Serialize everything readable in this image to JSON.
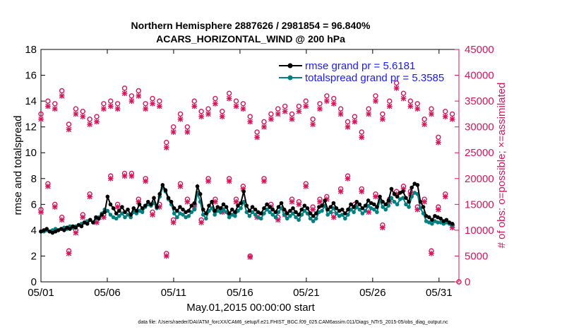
{
  "colors": {
    "rmse": "#000000",
    "spread": "#008080",
    "obs": "#d6145a",
    "legend_text": "#1a1aff",
    "axis": "#000000",
    "right_axis": "#d6145a"
  },
  "chart_data": {
    "type": "line",
    "title": [
      "Northern Hemisphere 2887626 / 2981854 = 96.840%",
      "ACARS_HORIZONTAL_WIND @ 200 hPa"
    ],
    "xlabel": "May.01,2015 00:00:00 start",
    "ylabel_left": "rmse and totalspread",
    "ylabel_right": "# of obs: o=possible; ×=assimilated",
    "xlim": [
      0,
      31.5
    ],
    "ylim_left": [
      0,
      18
    ],
    "ylim_right": [
      0,
      45000
    ],
    "x_ticks": [
      {
        "v": 0,
        "label": "05/01"
      },
      {
        "v": 5,
        "label": "05/06"
      },
      {
        "v": 10,
        "label": "05/11"
      },
      {
        "v": 15,
        "label": "05/16"
      },
      {
        "v": 20,
        "label": "05/21"
      },
      {
        "v": 25,
        "label": "05/26"
      },
      {
        "v": 30,
        "label": "05/31"
      }
    ],
    "y_ticks_left": [
      0,
      2,
      4,
      6,
      8,
      10,
      12,
      14,
      16,
      18
    ],
    "y_ticks_right": [
      0,
      5000,
      10000,
      15000,
      20000,
      25000,
      30000,
      35000,
      40000,
      45000
    ],
    "footnote": "data file: /Users/raeder/DAI/ATM_forcXX/CAM6_setup/f.e21.FHIST_BGC.f09_025.CAM6assim.011/Diags_NTrS_2015-05/obs_diag_output.nc",
    "legend_location": "top-right",
    "series": [
      {
        "name": "rmse grand pr = 5.6181",
        "values": [
          3.9,
          4.0,
          4.1,
          3.9,
          3.8,
          3.9,
          4.0,
          4.1,
          4.0,
          4.2,
          4.1,
          4.3,
          4.2,
          4.4,
          4.3,
          4.6,
          4.5,
          4.8,
          4.6,
          5.0,
          4.9,
          5.2,
          5.4,
          6.6,
          6.0,
          5.7,
          5.3,
          5.5,
          5.8,
          5.4,
          5.6,
          5.2,
          5.7,
          5.5,
          6.0,
          5.7,
          5.9,
          6.2,
          6.0,
          6.5,
          5.8,
          6.8,
          7.5,
          7.1,
          6.5,
          6.2,
          5.7,
          5.5,
          5.8,
          5.6,
          5.4,
          5.5,
          5.9,
          6.1,
          7.4,
          6.8,
          5.6,
          5.3,
          5.9,
          6.2,
          5.5,
          5.8,
          5.7,
          6.0,
          5.8,
          5.3,
          5.6,
          5.4,
          5.9,
          6.1,
          7.0,
          5.9,
          5.5,
          5.8,
          5.6,
          5.4,
          5.3,
          5.7,
          6.0,
          5.8,
          5.6,
          5.4,
          5.8,
          6.1,
          5.6,
          5.3,
          5.5,
          5.7,
          5.4,
          5.2,
          5.6,
          5.9,
          5.7,
          5.3,
          5.1,
          5.3,
          5.8,
          5.9,
          6.3,
          5.6,
          5.8,
          6.1,
          5.7,
          5.5,
          5.6,
          5.3,
          5.6,
          6.0,
          5.8,
          6.2,
          6.0,
          5.7,
          5.9,
          6.3,
          6.1,
          6.0,
          5.8,
          6.6,
          6.2,
          6.0,
          6.3,
          7.2,
          6.8,
          6.6,
          6.9,
          7.0,
          6.5,
          6.2,
          7.3,
          7.6,
          7.5,
          6.2,
          5.8,
          5.1,
          5.0,
          4.8,
          5.1,
          5.0,
          4.9,
          4.7,
          4.8,
          4.6,
          4.5
        ]
      },
      {
        "name": "totalspread grand pr = 5.3585",
        "values": [
          3.9,
          3.9,
          4.0,
          3.9,
          4.0,
          4.1,
          4.0,
          4.1,
          4.2,
          4.1,
          4.3,
          4.2,
          4.3,
          4.4,
          4.5,
          4.6,
          4.7,
          4.8,
          4.6,
          4.9,
          5.0,
          5.3,
          5.6,
          5.5,
          5.2,
          5.0,
          4.9,
          5.1,
          5.3,
          5.0,
          5.2,
          5.0,
          5.4,
          5.3,
          5.5,
          5.4,
          5.8,
          6.0,
          5.9,
          6.1,
          5.7,
          6.6,
          7.3,
          7.0,
          6.4,
          6.0,
          5.3,
          5.0,
          5.3,
          5.2,
          5.0,
          5.1,
          5.4,
          5.6,
          6.9,
          6.2,
          5.2,
          4.9,
          5.5,
          5.7,
          5.2,
          5.5,
          5.4,
          5.6,
          5.4,
          5.0,
          5.2,
          5.1,
          5.5,
          5.7,
          6.2,
          5.4,
          5.1,
          5.4,
          5.2,
          5.0,
          4.9,
          5.3,
          5.6,
          5.4,
          5.2,
          5.0,
          5.4,
          5.7,
          5.2,
          4.9,
          5.1,
          5.3,
          5.0,
          4.8,
          5.2,
          5.5,
          5.3,
          4.9,
          4.7,
          4.9,
          5.4,
          5.5,
          5.9,
          5.2,
          5.4,
          5.7,
          5.3,
          5.1,
          5.2,
          4.9,
          5.2,
          5.6,
          5.4,
          5.8,
          5.6,
          5.3,
          5.5,
          5.9,
          5.7,
          5.6,
          5.4,
          6.3,
          5.8,
          5.6,
          5.9,
          6.5,
          6.2,
          6.0,
          6.4,
          6.5,
          6.0,
          5.8,
          6.6,
          6.9,
          6.8,
          5.7,
          5.3,
          4.7,
          4.6,
          4.5,
          4.7,
          4.6,
          4.6,
          4.5,
          4.6,
          4.5,
          4.4
        ]
      },
      {
        "name": "possible",
        "values": [
          14000,
          19000,
          15000,
          12500,
          6000,
          10000,
          13000,
          17000,
          12000,
          13000,
          20500,
          15000,
          21000,
          21000,
          16000,
          20000,
          13500,
          15000,
          5500,
          12000,
          19000,
          16000,
          15000,
          12000,
          20000,
          16000,
          14000,
          20000,
          16000,
          18500,
          5000,
          13000,
          20000,
          15000,
          12500,
          13500,
          16000,
          15500,
          19000,
          14500,
          16000,
          16500,
          13000,
          18000,
          20500,
          15000,
          18000,
          14000,
          17000,
          11000,
          16000,
          17500,
          18500,
          17500,
          14500,
          16000,
          6000,
          14500,
          17000,
          11000
        ]
      },
      {
        "name": "assimilated",
        "values": [
          13500,
          18500,
          14500,
          12000,
          5500,
          9500,
          12500,
          16500,
          11500,
          12500,
          20000,
          14500,
          20500,
          20500,
          15500,
          19500,
          13000,
          14500,
          5000,
          11500,
          18500,
          15500,
          14500,
          11500,
          19500,
          15500,
          13500,
          19500,
          15500,
          18000,
          4800,
          12500,
          19500,
          14500,
          12000,
          13000,
          15500,
          15000,
          18500,
          14000,
          15500,
          16000,
          12500,
          17500,
          20000,
          14500,
          17500,
          13500,
          16500,
          10500,
          15500,
          17000,
          18000,
          17000,
          14000,
          15500,
          5500,
          14000,
          16500,
          10500
        ]
      },
      {
        "name": "possible_upper",
        "values": [
          32500,
          35000,
          34500,
          37000,
          30500,
          33500,
          33000,
          31500,
          32000,
          34500,
          35000,
          34500,
          37500,
          36000,
          37000,
          34500,
          35500,
          35000,
          27000,
          30000,
          32500,
          30000,
          35000,
          33000,
          33500,
          35500,
          33000,
          36500,
          35000,
          34500,
          32000,
          29000,
          31000,
          32500,
          33500,
          34000,
          32500,
          34000,
          35000,
          31500,
          34500,
          36000,
          35500,
          33500,
          31000,
          32000,
          29000,
          33500,
          36000,
          32500,
          35000,
          38500,
          36500,
          35000,
          34500,
          31500,
          33500,
          28000,
          33000,
          32500
        ]
      },
      {
        "name": "assimilated_upper",
        "values": [
          31500,
          34000,
          33500,
          36000,
          29500,
          32500,
          32000,
          30500,
          31000,
          33500,
          34000,
          33500,
          36500,
          35000,
          36000,
          33500,
          34500,
          34000,
          26000,
          29000,
          31500,
          29000,
          34000,
          32000,
          32500,
          34500,
          32000,
          35500,
          34000,
          33500,
          31000,
          28000,
          30000,
          31500,
          32500,
          33000,
          31500,
          33000,
          34000,
          30500,
          33500,
          35000,
          34500,
          32500,
          30000,
          31000,
          28000,
          32500,
          35000,
          31500,
          34000,
          37500,
          35500,
          34000,
          33500,
          30500,
          32500,
          27000,
          32000,
          31500
        ]
      }
    ]
  }
}
